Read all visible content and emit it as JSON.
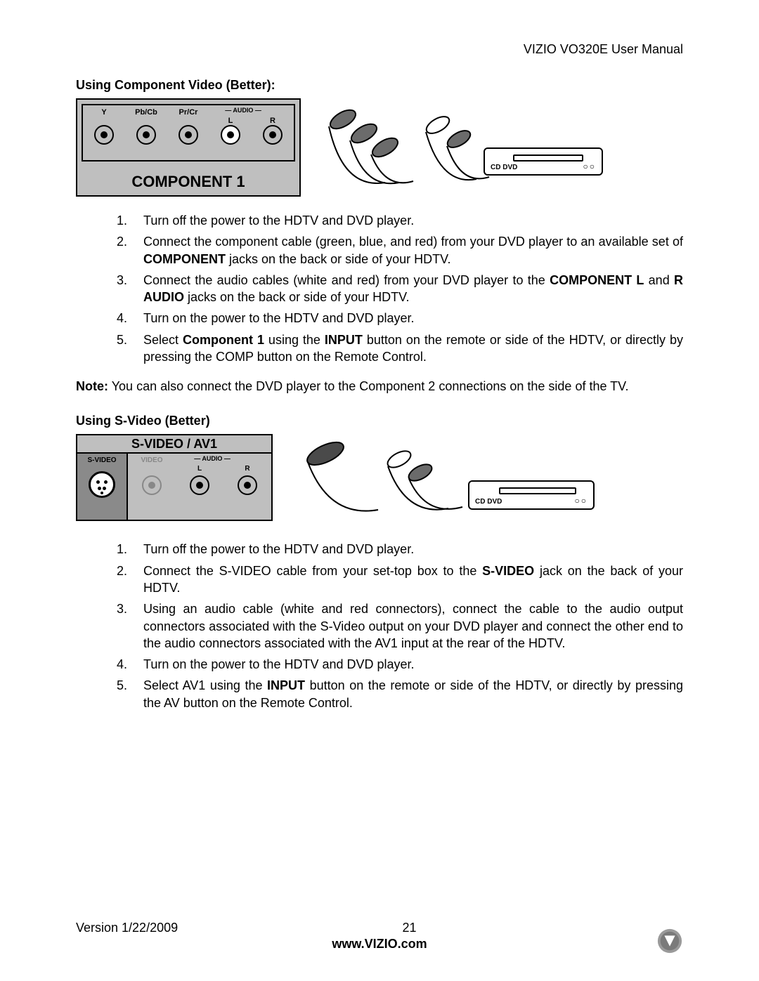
{
  "header": {
    "title": "VIZIO VO320E User Manual"
  },
  "section1": {
    "heading": "Using Component Video (Better):",
    "panel": {
      "jacks": [
        "Y",
        "Pb/Cb",
        "Pr/Cr",
        "L",
        "R"
      ],
      "audio_label": "AUDIO",
      "big_label": "COMPONENT 1",
      "bg_color": "#bfbfbf"
    },
    "device": {
      "label": "CD DVD"
    },
    "steps": [
      "Turn off the power to the HDTV and DVD player.",
      "Connect the component cable (green, blue, and red) from your DVD player to an available set of <b>COMPONENT</b> jacks on the back or side of your HDTV.",
      "Connect the audio cables (white and red) from your DVD player to the <b>COMPONENT L</b> and <b>R AUDIO</b> jacks on the back or side of your HDTV.",
      "Turn on the power to the HDTV and DVD player.",
      "Select <b>Component 1</b> using the <b>INPUT</b> button on the remote or side of the HDTV, or directly by pressing the COMP button on the Remote Control."
    ],
    "note_label": "Note:",
    "note": "You can also connect the DVD player to the Component 2 connections on the side of the TV."
  },
  "section2": {
    "heading": "Using S-Video (Better)",
    "panel": {
      "title": "S-VIDEO / AV1",
      "left_label": "S-VIDEO",
      "video_label": "VIDEO",
      "audio_label": "AUDIO",
      "lr": [
        "L",
        "R"
      ],
      "left_bg": "#8a8a8a",
      "bg_color": "#bfbfbf"
    },
    "device": {
      "label": "CD DVD"
    },
    "steps": [
      "Turn off the power to the HDTV and DVD player.",
      "Connect the S-VIDEO cable from your set-top box to the <b>S-VIDEO</b> jack on the back of your HDTV.",
      "Using an audio cable (white and red connectors), connect the cable to the audio output connectors associated with the S-Video output on your DVD player and connect the other end to the audio connectors associated with the AV1 input at the rear of the HDTV.",
      "Turn on the power to the HDTV and DVD player.",
      "Select AV1 using the <b>INPUT</b> button on the remote or side of the HDTV, or directly by pressing the AV button on the Remote Control."
    ]
  },
  "footer": {
    "version": "Version 1/22/2009",
    "page": "21",
    "url": "www.VIZIO.com"
  }
}
